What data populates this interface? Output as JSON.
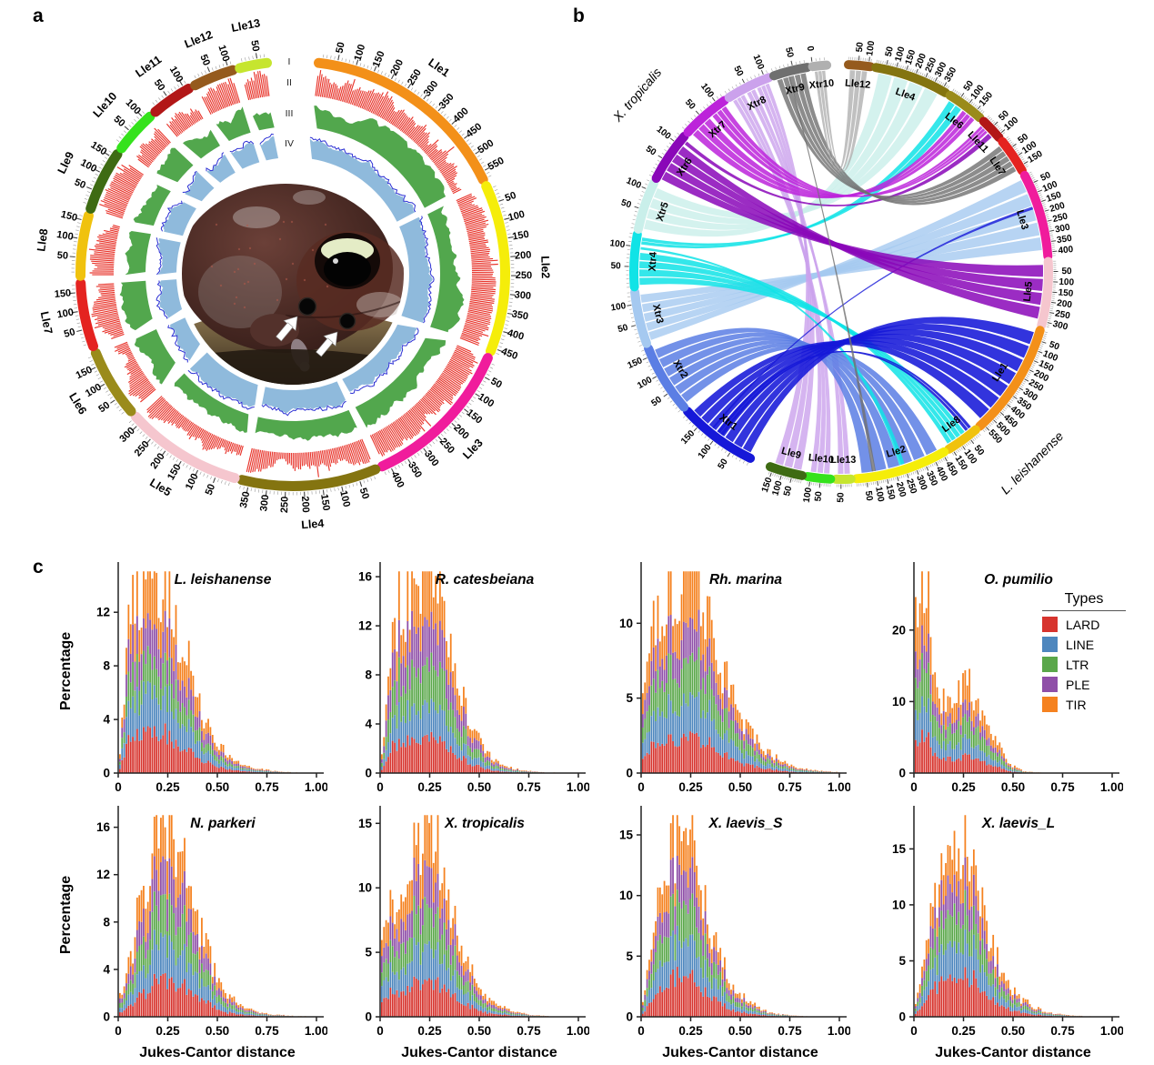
{
  "figure": {
    "panel_a": {
      "label": "a",
      "track_labels": [
        "I",
        "II",
        "III",
        "IV"
      ],
      "track_colors": {
        "II": "#E8352C",
        "III": "#52A74D",
        "IV_fill": "#8FBADC",
        "IV_line": "#2B2FD4"
      },
      "tick_interval_label": "50",
      "chromosomes": [
        {
          "name": "Lle1",
          "size_mb": 570,
          "color": "#F39019"
        },
        {
          "name": "Lle2",
          "size_mb": 460,
          "color": "#F5ED0A"
        },
        {
          "name": "Lle3",
          "size_mb": 420,
          "color": "#F01C9C"
        },
        {
          "name": "Lle4",
          "size_mb": 370,
          "color": "#847410"
        },
        {
          "name": "Lle5",
          "size_mb": 320,
          "color": "#F5C6CE"
        },
        {
          "name": "Lle6",
          "size_mb": 185,
          "color": "#9A8B1B"
        },
        {
          "name": "Lle7",
          "size_mb": 175,
          "color": "#E42320"
        },
        {
          "name": "Lle8",
          "size_mb": 165,
          "color": "#F0C20E"
        },
        {
          "name": "Lle9",
          "size_mb": 165,
          "color": "#3E6B13"
        },
        {
          "name": "Lle10",
          "size_mb": 115,
          "color": "#35E21C"
        },
        {
          "name": "Lle11",
          "size_mb": 110,
          "color": "#B21717"
        },
        {
          "name": "Lle12",
          "size_mb": 110,
          "color": "#955A1D"
        },
        {
          "name": "Lle13",
          "size_mb": 75,
          "color": "#C6E52F"
        }
      ],
      "center_image": {
        "subject": "dark brown Leishan moustache toad sitting on a rock",
        "arrow_count": 2,
        "arrow_color": "#ffffff"
      }
    },
    "panel_b": {
      "label": "b",
      "left_species": "X. tropicalis",
      "right_species": "L. leishanense",
      "xtr_chromosomes": [
        {
          "name": "Xtr1",
          "size_mb": 195,
          "color": "#1618D8"
        },
        {
          "name": "Xtr2",
          "size_mb": 170,
          "color": "#5B7EE4"
        },
        {
          "name": "Xtr3",
          "size_mb": 130,
          "color": "#A5C9F0"
        },
        {
          "name": "Xtr4",
          "size_mb": 130,
          "color": "#10E3E6"
        },
        {
          "name": "Xtr5",
          "size_mb": 120,
          "color": "#C9EFEA"
        },
        {
          "name": "Xtr6",
          "size_mb": 125,
          "color": "#8A07B8"
        },
        {
          "name": "Xtr7",
          "size_mb": 120,
          "color": "#BC23DA"
        },
        {
          "name": "Xtr8",
          "size_mb": 110,
          "color": "#CBA1EC"
        },
        {
          "name": "Xtr9",
          "size_mb": 85,
          "color": "#6F6F6F"
        },
        {
          "name": "Xtr10",
          "size_mb": 35,
          "color": "#B0B0B0"
        }
      ],
      "lle_order": [
        "Lle12",
        "Lle4",
        "Lle6",
        "Lle11",
        "Lle7",
        "Lle3",
        "Lle5",
        "Lle1",
        "Lle8",
        "Lle2",
        "Lle13",
        "Lle10",
        "Lle9"
      ],
      "reversed_ticks": [
        "Lle2"
      ],
      "ribbons": [
        {
          "from": "Xtr5",
          "f": [
            0.03,
            0.97
          ],
          "to": "Lle4",
          "t": [
            0.05,
            0.95
          ],
          "n": 4,
          "op": 0.8
        },
        {
          "from": "Xtr3",
          "f": [
            0.03,
            0.97
          ],
          "to": "Lle3",
          "t": [
            0.03,
            0.95
          ],
          "n": 5,
          "op": 0.8
        },
        {
          "from": "Xtr8",
          "f": [
            0.03,
            0.34
          ],
          "to": "Lle10",
          "t": [
            0.06,
            0.94
          ],
          "n": 3,
          "op": 0.8
        },
        {
          "from": "Xtr8",
          "f": [
            0.4,
            0.62
          ],
          "to": "Lle13",
          "t": [
            0.06,
            0.94
          ],
          "n": 2,
          "op": 0.8
        },
        {
          "from": "Xtr8",
          "f": [
            0.66,
            0.97
          ],
          "to": "Lle9",
          "t": [
            0.06,
            0.94
          ],
          "n": 3,
          "op": 0.8
        },
        {
          "from": "Xtr2",
          "f": [
            0.03,
            0.97
          ],
          "to": "Lle2",
          "t": [
            0.06,
            0.96
          ],
          "n": 6,
          "op": 0.85
        },
        {
          "from": "Xtr4",
          "f": [
            0.03,
            0.68
          ],
          "to": "Lle8",
          "t": [
            0.3,
            0.97
          ],
          "n": 4,
          "op": 0.85
        },
        {
          "from": "Xtr4",
          "f": [
            0.72,
            0.78
          ],
          "to": "Lle2",
          "t": [
            0.45,
            0.52
          ],
          "n": 1,
          "op": 0.85
        },
        {
          "from": "Xtr4",
          "f": [
            0.82,
            0.97
          ],
          "to": "Lle6",
          "t": [
            0.06,
            0.5
          ],
          "n": 2,
          "op": 0.85
        },
        {
          "from": "Xtr1",
          "f": [
            0.03,
            0.97
          ],
          "to": "Lle1",
          "t": [
            0.03,
            0.97
          ],
          "n": 7,
          "op": 0.88
        },
        {
          "from": "Xtr1",
          "f": [
            0.45,
            0.55
          ],
          "to": "Lle8",
          "t": [
            0.05,
            0.28
          ],
          "n": 2,
          "op": 0.88
        },
        {
          "from": "Xtr1",
          "f": [
            0.6,
            0.63
          ],
          "to": "Lle3",
          "t": [
            0.38,
            0.42
          ],
          "n": 1,
          "op": 0.8
        },
        {
          "from": "Xtr6",
          "f": [
            0.03,
            0.86
          ],
          "to": "Lle5",
          "t": [
            0.05,
            0.95
          ],
          "n": 4,
          "op": 0.85
        },
        {
          "from": "Xtr6",
          "f": [
            0.88,
            0.97
          ],
          "to": "Lle11",
          "t": [
            0.55,
            0.82
          ],
          "n": 1,
          "op": 0.85
        },
        {
          "from": "Xtr7",
          "f": [
            0.03,
            0.55
          ],
          "to": "Lle6",
          "t": [
            0.52,
            0.95
          ],
          "n": 3,
          "op": 0.85
        },
        {
          "from": "Xtr7",
          "f": [
            0.6,
            0.97
          ],
          "to": "Lle11",
          "t": [
            0.05,
            0.5
          ],
          "n": 3,
          "op": 0.85
        },
        {
          "from": "Xtr9",
          "f": [
            0.05,
            0.95
          ],
          "to": "Lle7",
          "t": [
            0.05,
            0.95
          ],
          "n": 5,
          "op": 0.8
        },
        {
          "from": "Xtr9",
          "f": [
            0.4,
            0.45
          ],
          "to": "Lle2",
          "t": [
            0.78,
            0.83
          ],
          "n": 1,
          "op": 0.8
        },
        {
          "from": "Xtr10",
          "f": [
            0.1,
            0.9
          ],
          "to": "Lle12",
          "t": [
            0.08,
            0.92
          ],
          "n": 3,
          "op": 0.8
        }
      ]
    },
    "panel_c": {
      "label": "c",
      "legend": {
        "title": "Types",
        "items": [
          {
            "label": "LARD",
            "color": "#D7342E"
          },
          {
            "label": "LINE",
            "color": "#4E87BE"
          },
          {
            "label": "LTR",
            "color": "#5AA74A"
          },
          {
            "label": "PLE",
            "color": "#8F4FA8"
          },
          {
            "label": "TIR",
            "color": "#F58220"
          }
        ]
      }
    }
  },
  "chart_data": {
    "type": "bar",
    "stacked": true,
    "xlabel": "Jukes-Cantor distance",
    "ylabel": "Percentage",
    "xlim": [
      0,
      1.05
    ],
    "xticks": [
      "0",
      "0.25",
      "0.50",
      "0.75",
      "1.00"
    ],
    "xtick_values": [
      0,
      0.25,
      0.5,
      0.75,
      1.0
    ],
    "x_bins_start": 0,
    "x_bins_step": 0.05,
    "series_order": [
      "LARD",
      "LINE",
      "LTR",
      "PLE",
      "TIR"
    ],
    "colors": {
      "LARD": "#D7342E",
      "LINE": "#4E87BE",
      "LTR": "#5AA74A",
      "PLE": "#8F4FA8",
      "TIR": "#F58220"
    },
    "plots": [
      {
        "title": "L. leishanense",
        "yticks": [
          0,
          4,
          8,
          12
        ],
        "ymax": 15.2,
        "totals": [
          0.6,
          11.0,
          12.6,
          13.4,
          13.8,
          13.2,
          11.2,
          7.8,
          4.9,
          3.1,
          2.0,
          1.3,
          0.8,
          0.5,
          0.3,
          0.2,
          0.12,
          0.07,
          0.04,
          0.02,
          0.01
        ],
        "shares": {
          "LARD": 0.22,
          "LINE": 0.21,
          "LTR": 0.17,
          "PLE": 0.19,
          "TIR": 0.21
        }
      },
      {
        "title": "R. catesbeiana",
        "yticks": [
          0,
          4,
          8,
          12,
          16
        ],
        "ymax": 16.6,
        "totals": [
          0.4,
          9.8,
          13.6,
          15.0,
          15.4,
          15.8,
          13.2,
          9.2,
          6.4,
          4.0,
          2.5,
          1.5,
          0.8,
          0.45,
          0.25,
          0.15,
          0.08,
          0.05,
          0.03,
          0.02,
          0.01
        ],
        "shares": {
          "LARD": 0.19,
          "LINE": 0.17,
          "LTR": 0.21,
          "PLE": 0.22,
          "TIR": 0.21
        }
      },
      {
        "title": "Rh. marina",
        "yticks": [
          0,
          5,
          10
        ],
        "ymax": 13.6,
        "totals": [
          4.2,
          9.6,
          10.4,
          11.0,
          12.4,
          12.8,
          11.6,
          9.6,
          7.0,
          5.0,
          3.5,
          2.5,
          1.8,
          1.2,
          0.8,
          0.5,
          0.3,
          0.2,
          0.14,
          0.09,
          0.05
        ],
        "shares": {
          "LARD": 0.19,
          "LINE": 0.2,
          "LTR": 0.21,
          "PLE": 0.18,
          "TIR": 0.22
        }
      },
      {
        "title": "O. pumilio",
        "yticks": [
          0,
          10,
          20
        ],
        "ymax": 28.5,
        "totals": [
          19.0,
          26.5,
          13.0,
          10.0,
          10.5,
          11.5,
          10.2,
          8.0,
          5.5,
          2.6,
          0.8,
          0.25,
          0.1,
          0.05,
          0.03,
          0.02,
          0.01,
          0.01,
          0,
          0,
          0
        ],
        "shares": {
          "LARD": 0.2,
          "LINE": 0.18,
          "LTR": 0.22,
          "PLE": 0.15,
          "TIR": 0.25
        }
      },
      {
        "title": "N. parkeri",
        "yticks": [
          0,
          4,
          8,
          12,
          16
        ],
        "ymax": 17.2,
        "totals": [
          1.6,
          4.2,
          7.6,
          11.2,
          14.2,
          15.6,
          13.8,
          11.0,
          7.9,
          5.0,
          3.0,
          1.8,
          1.1,
          0.65,
          0.4,
          0.25,
          0.15,
          0.1,
          0.06,
          0.04,
          0.02
        ],
        "shares": {
          "LARD": 0.2,
          "LINE": 0.2,
          "LTR": 0.2,
          "PLE": 0.19,
          "TIR": 0.21
        }
      },
      {
        "title": "X. tropicalis",
        "yticks": [
          0,
          5,
          10,
          15
        ],
        "ymax": 15.8,
        "totals": [
          4.4,
          8.6,
          9.6,
          11.0,
          13.4,
          14.6,
          12.4,
          8.8,
          5.6,
          3.5,
          2.2,
          1.3,
          0.8,
          0.5,
          0.3,
          0.16,
          0.09,
          0.05,
          0.03,
          0.02,
          0.01
        ],
        "shares": {
          "LARD": 0.21,
          "LINE": 0.19,
          "LTR": 0.2,
          "PLE": 0.19,
          "TIR": 0.21
        }
      },
      {
        "title": "X. laevis_S",
        "yticks": [
          0,
          5,
          10,
          15
        ],
        "ymax": 16.8,
        "totals": [
          0.6,
          5.6,
          9.6,
          13.6,
          16.0,
          14.4,
          10.4,
          7.0,
          4.5,
          2.8,
          1.8,
          1.05,
          0.6,
          0.35,
          0.2,
          0.12,
          0.07,
          0.04,
          0.03,
          0.02,
          0.01
        ],
        "shares": {
          "LARD": 0.22,
          "LINE": 0.21,
          "LTR": 0.2,
          "PLE": 0.18,
          "TIR": 0.19
        }
      },
      {
        "title": "X. laevis_L",
        "yticks": [
          0,
          5,
          10,
          15
        ],
        "ymax": 18.2,
        "totals": [
          0.6,
          5.2,
          9.2,
          13.2,
          16.6,
          15.4,
          12.0,
          8.6,
          5.6,
          3.6,
          2.2,
          1.35,
          0.8,
          0.5,
          0.3,
          0.18,
          0.1,
          0.06,
          0.04,
          0.02,
          0.01
        ],
        "shares": {
          "LARD": 0.24,
          "LINE": 0.2,
          "LTR": 0.19,
          "PLE": 0.17,
          "TIR": 0.2
        }
      }
    ]
  }
}
